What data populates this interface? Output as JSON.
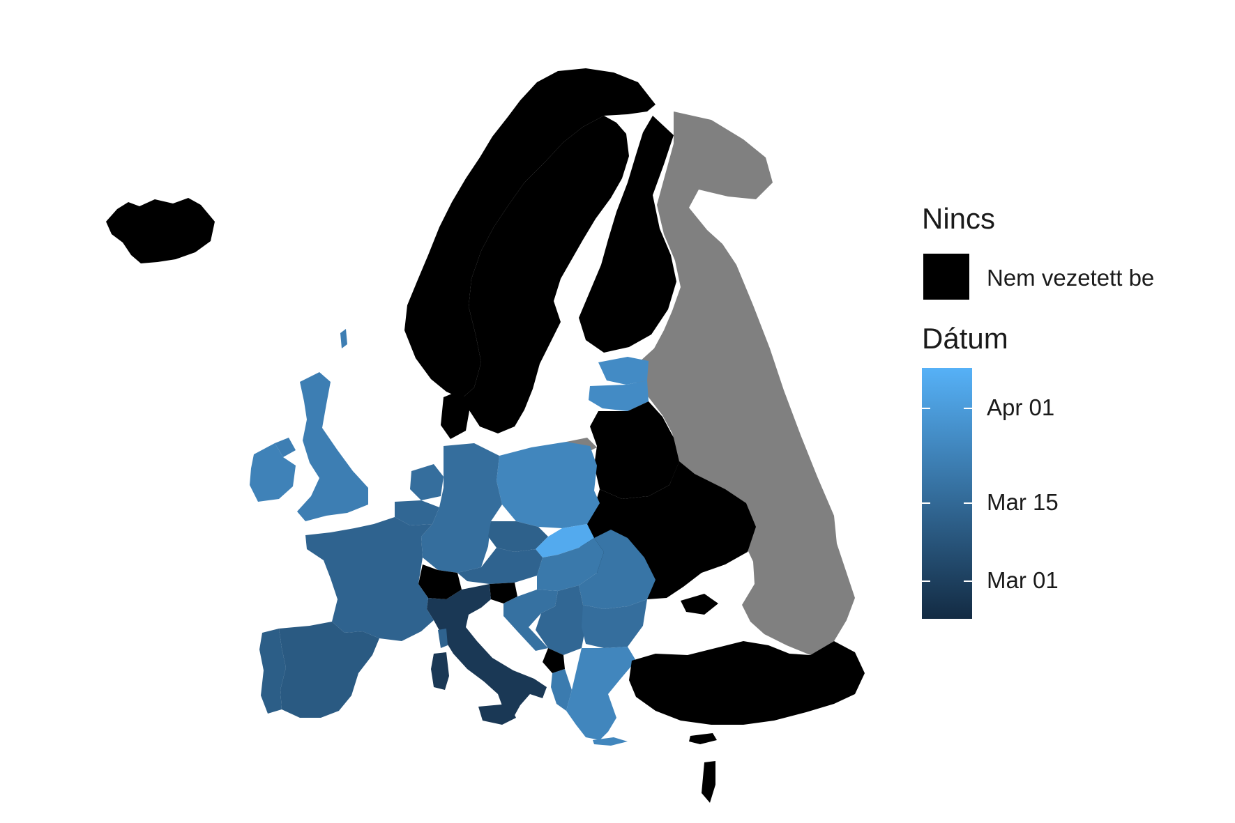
{
  "legend": {
    "none_title": "Nincs",
    "none_label": "Nem vezetett be",
    "none_color": "#000000",
    "date_title": "Dátum",
    "gradient_low": "#132b43",
    "gradient_high": "#56b1f7",
    "ticks": [
      {
        "label": "Apr 01",
        "fraction": 0.84
      },
      {
        "label": "Mar 15",
        "fraction": 0.46
      },
      {
        "label": "Mar 01",
        "fraction": 0.15
      }
    ]
  },
  "map": {
    "no_data_color": "#808080",
    "regions": [
      {
        "name": "Iceland",
        "status": "none"
      },
      {
        "name": "Norway",
        "status": "none"
      },
      {
        "name": "Sweden",
        "status": "none"
      },
      {
        "name": "Finland",
        "status": "none"
      },
      {
        "name": "Russia",
        "status": "no-data"
      },
      {
        "name": "Estonia",
        "status": "date",
        "fraction": 0.72
      },
      {
        "name": "Latvia",
        "status": "date",
        "fraction": 0.72
      },
      {
        "name": "Belarus",
        "status": "none"
      },
      {
        "name": "Ukraine",
        "status": "none"
      },
      {
        "name": "Poland",
        "status": "date",
        "fraction": 0.68
      },
      {
        "name": "Germany",
        "status": "date",
        "fraction": 0.5
      },
      {
        "name": "Czechia",
        "status": "date",
        "fraction": 0.4
      },
      {
        "name": "Slovakia",
        "status": "date",
        "fraction": 0.95
      },
      {
        "name": "Austria",
        "status": "date",
        "fraction": 0.42
      },
      {
        "name": "Hungary",
        "status": "date",
        "fraction": 0.58
      },
      {
        "name": "Romania",
        "status": "date",
        "fraction": 0.55
      },
      {
        "name": "Serbia",
        "status": "date",
        "fraction": 0.45
      },
      {
        "name": "Bulgaria",
        "status": "date",
        "fraction": 0.5
      },
      {
        "name": "Croatia",
        "status": "date",
        "fraction": 0.52
      },
      {
        "name": "Montenegro",
        "status": "none"
      },
      {
        "name": "Albania",
        "status": "date",
        "fraction": 0.6
      },
      {
        "name": "Greece",
        "status": "date",
        "fraction": 0.68
      },
      {
        "name": "Turkey",
        "status": "none"
      },
      {
        "name": "Cyprus",
        "status": "none"
      },
      {
        "name": "Switzerland",
        "status": "none"
      },
      {
        "name": "Slovenia",
        "status": "none"
      },
      {
        "name": "Italy",
        "status": "date",
        "fraction": 0.1
      },
      {
        "name": "France",
        "status": "date",
        "fraction": 0.42
      },
      {
        "name": "Belgium",
        "status": "date",
        "fraction": 0.45
      },
      {
        "name": "Netherlands",
        "status": "date",
        "fraction": 0.5
      },
      {
        "name": "Denmark",
        "status": "none"
      },
      {
        "name": "United Kingdom",
        "status": "date",
        "fraction": 0.62
      },
      {
        "name": "Ireland",
        "status": "date",
        "fraction": 0.65
      },
      {
        "name": "Spain",
        "status": "date",
        "fraction": 0.35
      },
      {
        "name": "Portugal",
        "status": "date",
        "fraction": 0.38
      }
    ]
  }
}
